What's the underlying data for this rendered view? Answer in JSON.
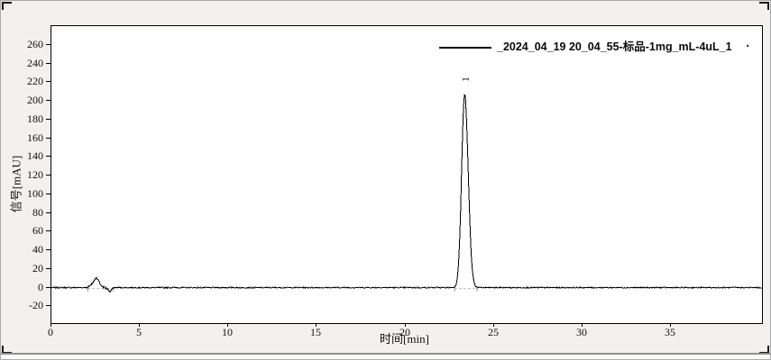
{
  "colors": {
    "background": "#f2f1ef",
    "plot_background": "#ffffff",
    "trace": "#000000",
    "integration_baseline": "#b4b4b4",
    "frame": "#000000"
  },
  "legend": {
    "label": "_2024_04_19 20_04_55-标品-1mg_mL-4uL_1",
    "trailing_dot": "."
  },
  "axes": {
    "x": {
      "label": "时间[min]"
    },
    "y": {
      "label": "信号[mAU]"
    }
  },
  "chart_data": {
    "type": "line",
    "title": "",
    "xlabel": "时间[min]",
    "ylabel": "信号[mAU]",
    "xlim": [
      0,
      40.15
    ],
    "ylim": [
      -38,
      280
    ],
    "x_ticks": [
      0,
      5,
      10,
      15,
      20,
      25,
      30,
      35
    ],
    "y_ticks": [
      -20,
      0,
      20,
      40,
      60,
      80,
      100,
      120,
      140,
      160,
      180,
      200,
      220,
      240,
      260
    ],
    "grid": false,
    "legend_position": "top-right",
    "series": [
      {
        "name": "_2024_04_19 20_04_55-标品-1mg_mL-4uL_1",
        "color": "#000000",
        "baseline_mAU": 0,
        "noise_amplitude_mAU": 0.55,
        "peaks": [
          {
            "label": "1",
            "retention_time_min": 23.35,
            "height_mAU": 207,
            "sigma_left_min": 0.17,
            "sigma_right_min": 0.2
          },
          {
            "label": "",
            "retention_time_min": 2.55,
            "height_mAU": 10.5,
            "sigma_left_min": 0.14,
            "sigma_right_min": 0.14
          },
          {
            "label": "",
            "retention_time_min": 2.25,
            "height_mAU": 2.5,
            "sigma_left_min": 0.1,
            "sigma_right_min": 0.1
          },
          {
            "label": "",
            "retention_time_min": 3.3,
            "height_mAU": -4.2,
            "sigma_left_min": 0.09,
            "sigma_right_min": 0.09
          }
        ],
        "extra_noise_regions": [
          {
            "from_min": 2.05,
            "to_min": 3.45,
            "amplitude_mAU": 0.9
          }
        ]
      }
    ],
    "annotated_peaks": [
      {
        "label": "1",
        "retention_time_min": 23.35,
        "height_mAU": 207,
        "label_rotated_90": true
      }
    ],
    "integration_baselines": [
      {
        "from_min": 22.78,
        "to_min": 24.05,
        "level_mAU": -1.2
      },
      {
        "from_min": 2.05,
        "to_min": 3.5,
        "level_mAU": -1.2
      }
    ]
  }
}
